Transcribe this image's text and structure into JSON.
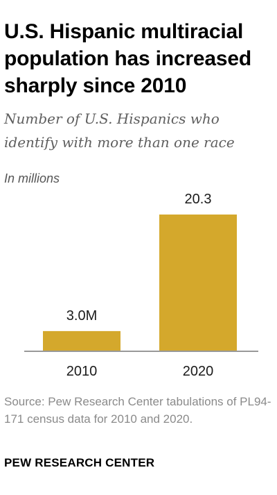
{
  "header": {
    "title": "U.S. Hispanic multiracial population has increased sharply since 2010",
    "subtitle": "Number of U.S. Hispanics who identify with more than one race",
    "units": "In millions"
  },
  "chart_data": {
    "type": "bar",
    "title": "U.S. Hispanic multiracial population has increased sharply since 2010",
    "subtitle": "Number of U.S. Hispanics who identify with more than one race",
    "categories": [
      "2010",
      "2020"
    ],
    "values": [
      3.0,
      20.3
    ],
    "data_labels": [
      "3.0M",
      "20.3"
    ],
    "ylabel": "In millions",
    "ylim": [
      0,
      20.3
    ],
    "grid": false,
    "legend": "none",
    "bar_color": "#d4a82c",
    "axis_color": "#999999"
  },
  "footer": {
    "source": "Source: Pew Research Center tabulations of PL94-171 census data for 2010 and 2020.",
    "brand": "PEW RESEARCH CENTER"
  }
}
